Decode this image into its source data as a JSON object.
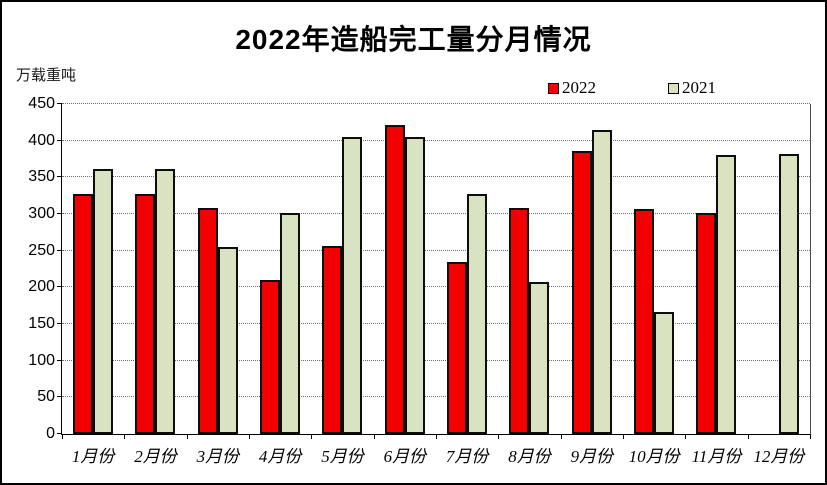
{
  "title": "2022年造船完工量分月情况",
  "y_unit_label": "万载重吨",
  "legend": {
    "items": [
      {
        "label": "2022",
        "color": "#f20000"
      },
      {
        "label": "2021",
        "color": "#d9e3c2"
      }
    ]
  },
  "chart_data": {
    "type": "bar",
    "title": "2022年造船完工量分月情况",
    "xlabel": "",
    "ylabel": "万载重吨",
    "ylim": [
      0,
      450
    ],
    "yticks": [
      0,
      50,
      100,
      150,
      200,
      250,
      300,
      350,
      400,
      450
    ],
    "grid": "horizontal-dotted",
    "legend_position": "top",
    "categories": [
      "1月份",
      "2月份",
      "3月份",
      "4月份",
      "5月份",
      "6月份",
      "7月份",
      "8月份",
      "9月份",
      "10月份",
      "11月份",
      "12月份"
    ],
    "series": [
      {
        "name": "2022",
        "color": "#f20000",
        "values": [
          327,
          327,
          308,
          210,
          256,
          422,
          235,
          308,
          386,
          307,
          302,
          null
        ]
      },
      {
        "name": "2021",
        "color": "#d9e3c2",
        "values": [
          361,
          361,
          255,
          301,
          405,
          405,
          327,
          207,
          414,
          166,
          381,
          382
        ]
      }
    ]
  }
}
